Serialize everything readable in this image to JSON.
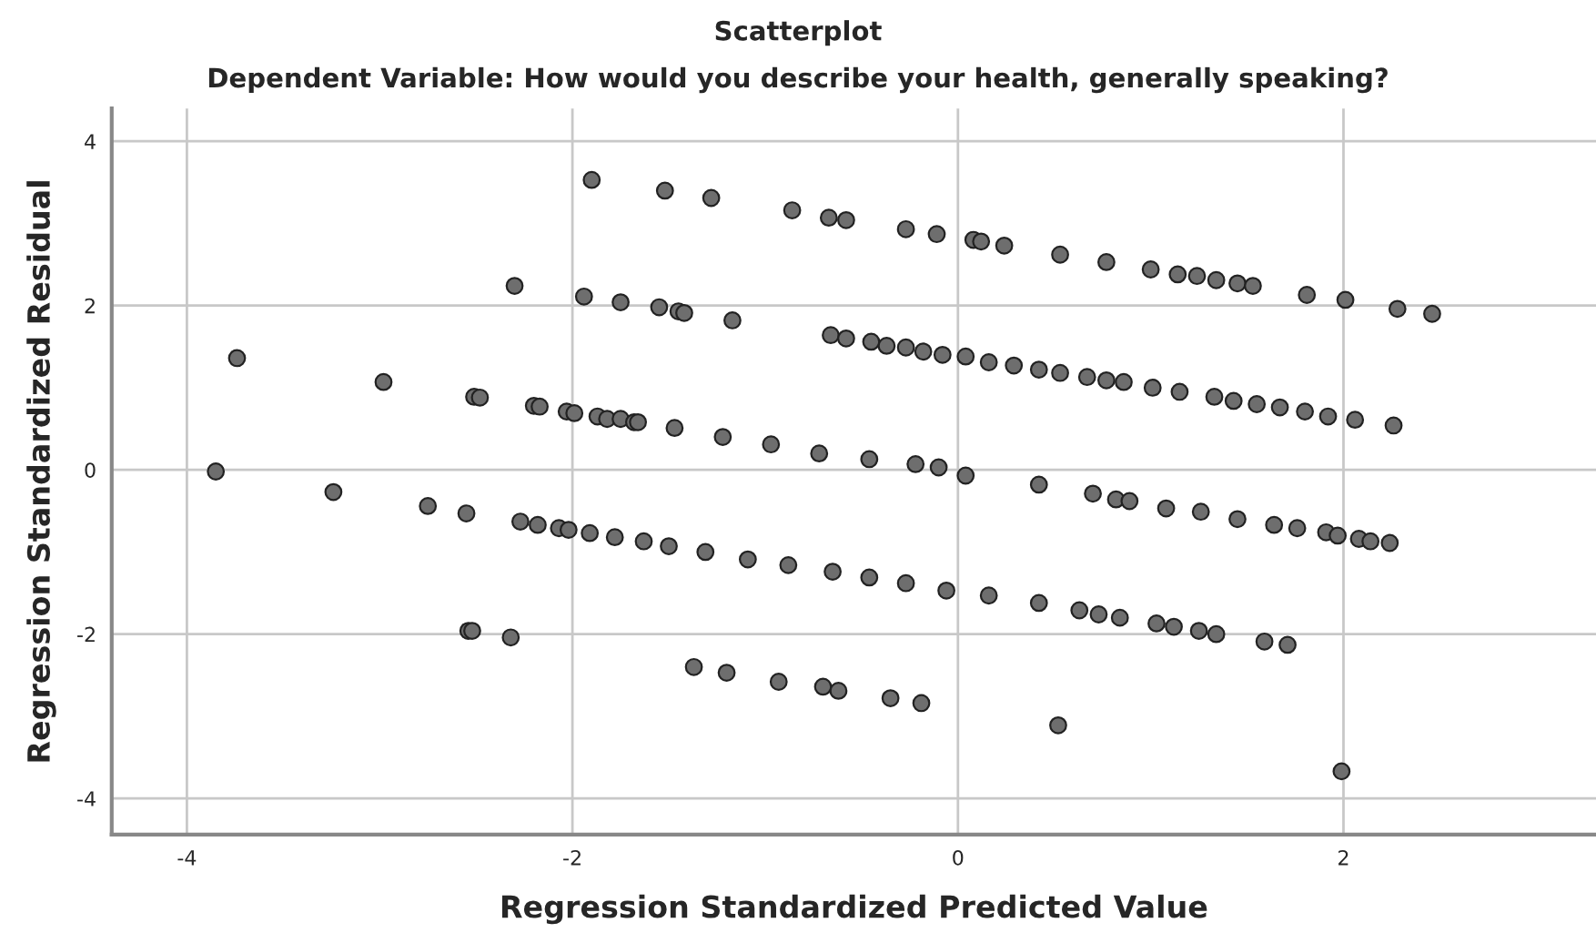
{
  "chart_data": {
    "type": "scatter",
    "title": "Scatterplot",
    "subtitle": "Dependent Variable: How would you describe your health, generally speaking?",
    "xlabel": "Regression Standardized Predicted Value",
    "ylabel": "Regression Standardized Residual",
    "xlim": [
      -4.39,
      3.31
    ],
    "ylim": [
      -4.44,
      4.4
    ],
    "xticks": [
      -4,
      -2,
      0,
      2
    ],
    "yticks": [
      -4,
      -2,
      0,
      2,
      4
    ],
    "grid": true,
    "marker": "circle",
    "series": [
      {
        "color": "#6e6e6e",
        "x": [
          -1.9,
          -2.3,
          -1.94,
          -1.75,
          -1.52,
          -1.28,
          -0.86,
          -0.67,
          -0.58,
          -0.27,
          -0.11,
          0.08,
          0.12,
          0.24,
          0.53,
          0.77,
          1.0,
          1.14,
          1.24,
          1.34,
          1.45,
          1.53,
          1.81,
          2.01,
          2.28,
          2.46,
          -3.74,
          -2.98,
          -1.55,
          -1.45,
          -1.42,
          -1.17,
          -0.66,
          -0.58,
          -0.45,
          -0.37,
          -0.27,
          -0.18,
          -0.08,
          0.04,
          0.16,
          0.29,
          0.42,
          0.53,
          0.67,
          0.77,
          0.86,
          1.01,
          1.15,
          1.33,
          1.43,
          1.55,
          1.67,
          1.8,
          1.92,
          2.06,
          2.26,
          -3.85,
          -2.51,
          -2.48,
          -2.2,
          -2.17,
          -2.03,
          -1.99,
          -1.87,
          -1.82,
          -1.75,
          -1.68,
          -1.66,
          -1.47,
          -1.22,
          -0.97,
          -0.72,
          -0.46,
          -0.22,
          -0.1,
          0.04,
          0.42,
          0.7,
          0.82,
          0.89,
          1.08,
          1.26,
          1.45,
          1.64,
          1.76,
          1.91,
          1.97,
          2.08,
          2.14,
          2.24,
          -3.24,
          -2.75,
          -2.55,
          -2.27,
          -2.18,
          -2.07,
          -2.02,
          -1.91,
          -1.78,
          -1.63,
          -1.5,
          -1.31,
          -1.09,
          -0.88,
          -0.65,
          -0.46,
          -0.27,
          -0.06,
          0.16,
          0.42,
          0.63,
          0.73,
          0.84,
          1.03,
          1.12,
          1.25,
          1.34,
          1.59,
          1.71,
          -2.54,
          -2.52,
          -2.32,
          -1.37,
          -1.2,
          -0.93,
          -0.7,
          -0.62,
          -0.35,
          -0.19,
          0.52,
          1.99
        ],
        "values": [
          3.53,
          2.24,
          2.11,
          2.04,
          3.4,
          3.31,
          3.16,
          3.07,
          3.04,
          2.93,
          2.87,
          2.8,
          2.78,
          2.73,
          2.62,
          2.53,
          2.44,
          2.38,
          2.36,
          2.31,
          2.27,
          2.24,
          2.13,
          2.07,
          1.96,
          1.9,
          1.36,
          1.07,
          1.98,
          1.93,
          1.91,
          1.82,
          1.64,
          1.6,
          1.56,
          1.51,
          1.49,
          1.44,
          1.4,
          1.38,
          1.31,
          1.27,
          1.22,
          1.18,
          1.13,
          1.09,
          1.07,
          1.0,
          0.95,
          0.89,
          0.84,
          0.8,
          0.76,
          0.71,
          0.65,
          0.61,
          0.54,
          -0.02,
          0.89,
          0.88,
          0.78,
          0.77,
          0.71,
          0.69,
          0.65,
          0.62,
          0.62,
          0.58,
          0.58,
          0.51,
          0.4,
          0.31,
          0.2,
          0.13,
          0.07,
          0.03,
          -0.07,
          -0.18,
          -0.29,
          -0.36,
          -0.38,
          -0.47,
          -0.51,
          -0.6,
          -0.67,
          -0.71,
          -0.76,
          -0.8,
          -0.84,
          -0.87,
          -0.89,
          -0.27,
          -0.44,
          -0.53,
          -0.63,
          -0.67,
          -0.71,
          -0.73,
          -0.77,
          -0.82,
          -0.87,
          -0.93,
          -1.0,
          -1.09,
          -1.16,
          -1.24,
          -1.31,
          -1.38,
          -1.47,
          -1.53,
          -1.62,
          -1.71,
          -1.76,
          -1.8,
          -1.87,
          -1.91,
          -1.96,
          -2.0,
          -2.09,
          -2.13,
          -1.96,
          -1.96,
          -2.04,
          -2.4,
          -2.47,
          -2.58,
          -2.64,
          -2.69,
          -2.78,
          -2.84,
          -3.11,
          -3.67
        ]
      }
    ]
  }
}
